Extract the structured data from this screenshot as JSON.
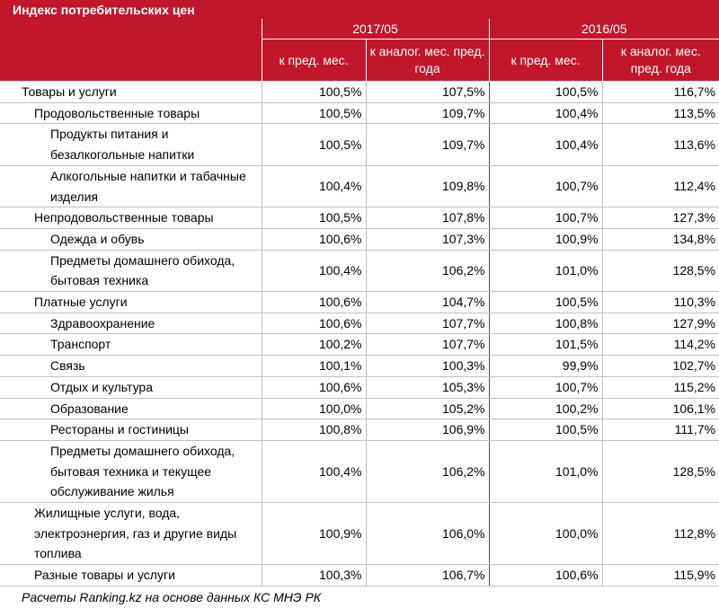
{
  "title": "Индекс потребительских цен",
  "periods": [
    "2017/05",
    "2016/05"
  ],
  "subheaders": [
    "к пред. мес.",
    "к аналог. мес. пред. года",
    "к пред. мес.",
    "к аналог. мес. пред. года"
  ],
  "rows": [
    {
      "name": "Товары и услуги",
      "level": 0,
      "values": [
        "100,5%",
        "107,5%",
        "100,5%",
        "116,7%"
      ]
    },
    {
      "name": "Продовольственные товары",
      "level": 1,
      "values": [
        "100,5%",
        "109,7%",
        "100,4%",
        "113,5%"
      ]
    },
    {
      "name": "Продукты питания и безалкогольные напитки",
      "level": 2,
      "values": [
        "100,5%",
        "109,7%",
        "100,4%",
        "113,6%"
      ]
    },
    {
      "name": "Алкогольные напитки и табачные изделия",
      "level": 2,
      "values": [
        "100,4%",
        "109,8%",
        "100,7%",
        "112,4%"
      ]
    },
    {
      "name": "Непродовольственные товары",
      "level": 1,
      "values": [
        "100,5%",
        "107,8%",
        "100,7%",
        "127,3%"
      ]
    },
    {
      "name": "Одежда и обувь",
      "level": 2,
      "values": [
        "100,6%",
        "107,3%",
        "100,9%",
        "134,8%"
      ]
    },
    {
      "name": "Предметы домашнего обихода, бытовая техника",
      "level": 2,
      "values": [
        "100,4%",
        "106,2%",
        "101,0%",
        "128,5%"
      ]
    },
    {
      "name": "Платные услуги",
      "level": 1,
      "values": [
        "100,6%",
        "104,7%",
        "100,5%",
        "110,3%"
      ]
    },
    {
      "name": "Здравоохранение",
      "level": 2,
      "values": [
        "100,6%",
        "107,7%",
        "100,8%",
        "127,9%"
      ]
    },
    {
      "name": "Транспорт",
      "level": 2,
      "values": [
        "100,2%",
        "107,7%",
        "101,5%",
        "114,2%"
      ]
    },
    {
      "name": "Связь",
      "level": 2,
      "values": [
        "100,1%",
        "100,3%",
        "99,9%",
        "102,7%"
      ]
    },
    {
      "name": "Отдых и культура",
      "level": 2,
      "values": [
        "100,6%",
        "105,3%",
        "100,7%",
        "115,2%"
      ]
    },
    {
      "name": "Образование",
      "level": 2,
      "values": [
        "100,0%",
        "105,2%",
        "100,2%",
        "106,1%"
      ]
    },
    {
      "name": "Рестораны и гостиницы",
      "level": 2,
      "values": [
        "100,8%",
        "106,9%",
        "100,5%",
        "111,7%"
      ]
    },
    {
      "name": "Предметы домашнего обихода, бытовая техника и текущее обслуживание жилья",
      "level": 2,
      "values": [
        "100,4%",
        "106,2%",
        "101,0%",
        "128,5%"
      ]
    },
    {
      "name": "Жилищные услуги, вода, электроэнергия, газ и другие виды топлива",
      "level": 1,
      "values": [
        "100,9%",
        "106,0%",
        "100,0%",
        "112,8%"
      ]
    },
    {
      "name": "Разные товары и услуги",
      "level": 1,
      "values": [
        "100,3%",
        "106,7%",
        "100,6%",
        "115,9%"
      ]
    }
  ],
  "footer": "Расчеты Ranking.kz на основе данных КС МНЭ РК",
  "colors": {
    "header_bg": "#c0182a",
    "header_text": "#ffffff",
    "grid": "#bfbfbf"
  }
}
